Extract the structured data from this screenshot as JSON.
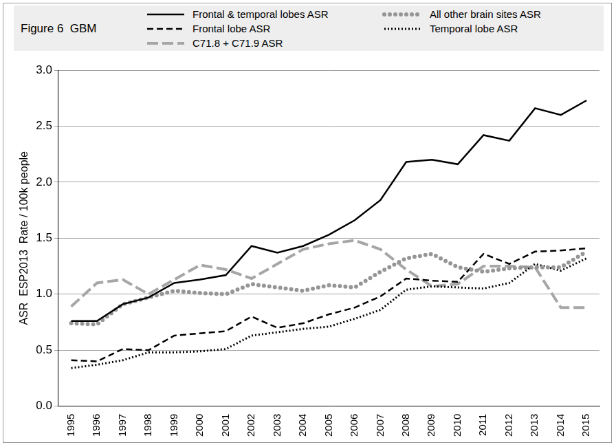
{
  "chart_data": {
    "type": "line",
    "title": "Figure 6  GBM",
    "y_label": "ASR  ESP2013  Rate / 100k people",
    "categories": [
      "1995",
      "1996",
      "1997",
      "1998",
      "1999",
      "2000",
      "2001",
      "2002",
      "2003",
      "2004",
      "2005",
      "2006",
      "2007",
      "2008",
      "2009",
      "2010",
      "2011",
      "2012",
      "2013",
      "2014",
      "2015"
    ],
    "series": [
      {
        "name": "Frontal & temporal lobes ASR",
        "color": "#000000",
        "line_style": "solid",
        "values": [
          0.76,
          0.76,
          0.91,
          0.97,
          1.1,
          1.13,
          1.17,
          1.43,
          1.37,
          1.43,
          1.53,
          1.66,
          1.84,
          2.18,
          2.2,
          2.16,
          2.42,
          2.37,
          2.66,
          2.6,
          2.73
        ]
      },
      {
        "name": "All other brain sites ASR",
        "color": "#959595",
        "line_style": "dots",
        "values": [
          0.74,
          0.73,
          0.91,
          0.97,
          1.03,
          1.01,
          1.0,
          1.09,
          1.06,
          1.03,
          1.08,
          1.06,
          1.2,
          1.32,
          1.36,
          1.24,
          1.2,
          1.23,
          1.24,
          1.24,
          1.38
        ]
      },
      {
        "name": "Frontal lobe ASR",
        "color": "#000000",
        "line_style": "dashed",
        "values": [
          0.41,
          0.4,
          0.51,
          0.5,
          0.63,
          0.65,
          0.67,
          0.8,
          0.7,
          0.74,
          0.82,
          0.88,
          0.98,
          1.14,
          1.12,
          1.11,
          1.36,
          1.27,
          1.38,
          1.39,
          1.41
        ]
      },
      {
        "name": "Temporal lobe ASR",
        "color": "#000000",
        "line_style": "dotted",
        "values": [
          0.34,
          0.37,
          0.41,
          0.48,
          0.48,
          0.49,
          0.51,
          0.63,
          0.66,
          0.69,
          0.71,
          0.78,
          0.86,
          1.04,
          1.07,
          1.06,
          1.05,
          1.1,
          1.27,
          1.21,
          1.32
        ]
      },
      {
        "name": "C71.8 + C71.9 ASR",
        "color": "#a6a6a6",
        "line_style": "long_dashed",
        "values": [
          0.89,
          1.1,
          1.13,
          1.0,
          1.13,
          1.26,
          1.22,
          1.14,
          1.27,
          1.4,
          1.45,
          1.48,
          1.4,
          1.22,
          1.07,
          1.09,
          1.25,
          1.25,
          1.24,
          0.88,
          0.88
        ]
      }
    ],
    "ylim": [
      0,
      3
    ],
    "yticks": [
      {
        "value": 0,
        "label": "0.0"
      },
      {
        "value": 0.5,
        "label": "0.5"
      },
      {
        "value": 1,
        "label": "1.0"
      },
      {
        "value": 1.5,
        "label": "1.5"
      },
      {
        "value": 2,
        "label": "2.0"
      },
      {
        "value": 2.5,
        "label": "2.5"
      },
      {
        "value": 3,
        "label": "3.0"
      }
    ],
    "grid": true,
    "legend": "top"
  }
}
